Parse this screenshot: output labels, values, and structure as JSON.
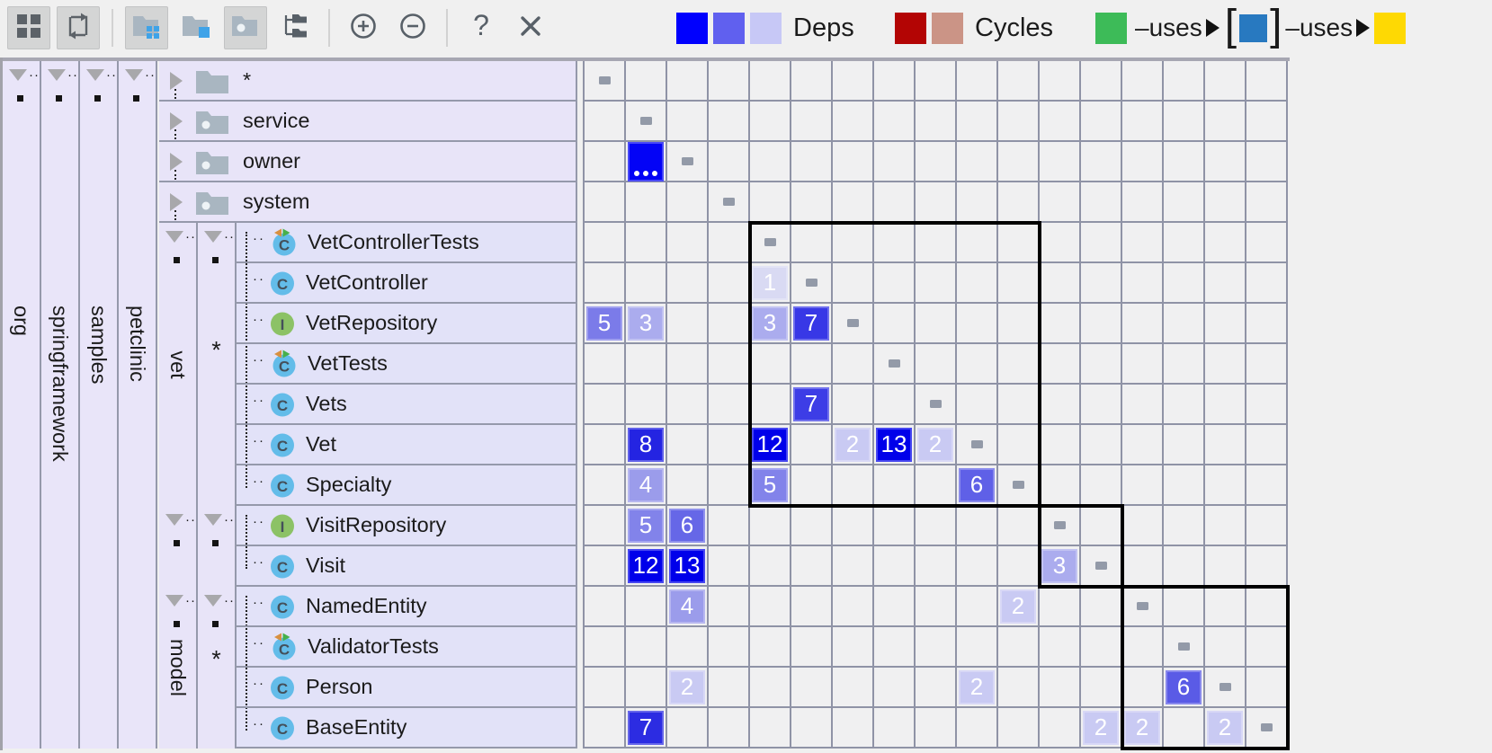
{
  "toolbar": {
    "buttons": [
      {
        "icon": "grid",
        "name": "matrix-view-button",
        "pressed": true
      },
      {
        "icon": "cycle",
        "name": "cycles-mode-button",
        "pressed": true
      },
      {
        "sep": true
      },
      {
        "icon": "folder-grid",
        "name": "group-by-packages-button",
        "pressed": true
      },
      {
        "icon": "folder-square",
        "name": "flatten-packages-button",
        "pressed": false
      },
      {
        "icon": "folder-dot",
        "name": "show-packages-button",
        "pressed": true
      },
      {
        "icon": "tree",
        "name": "tree-structure-button",
        "pressed": false
      },
      {
        "sep": true
      },
      {
        "icon": "zoom-in",
        "name": "zoom-in-button",
        "pressed": false
      },
      {
        "icon": "zoom-out",
        "name": "zoom-out-button",
        "pressed": false
      },
      {
        "sep": true
      },
      {
        "icon": "help",
        "name": "help-button",
        "pressed": false
      },
      {
        "icon": "close",
        "name": "close-button",
        "pressed": false
      }
    ]
  },
  "legend": {
    "deps": {
      "label": "Deps",
      "colors": [
        "#0000fe",
        "#6060ef",
        "#c7c8f6"
      ]
    },
    "cycles": {
      "label": "Cycles",
      "colors": [
        "#b30504",
        "#cb9486"
      ]
    },
    "uses": {
      "from_color": "#3dbb58",
      "label1": "–uses",
      "bracket_open": "[",
      "mid_color": "#2879c0",
      "bracket_close": "]",
      "label2": "–uses",
      "to_color": "#fed903"
    }
  },
  "packages": {
    "items": [
      "org",
      "springframework",
      "samples",
      "petclinic"
    ]
  },
  "tree": {
    "top_rows": [
      {
        "label": "*",
        "icon": "folder-plain"
      },
      {
        "label": "service",
        "icon": "package"
      },
      {
        "label": "owner",
        "icon": "package"
      },
      {
        "label": "system",
        "icon": "package"
      }
    ],
    "groups": [
      {
        "label": "vet",
        "sub": "*",
        "rows": [
          {
            "label": "VetControllerTests",
            "icon": "test-class"
          },
          {
            "label": "VetController",
            "icon": "class"
          },
          {
            "label": "VetRepository",
            "icon": "interface"
          },
          {
            "label": "VetTests",
            "icon": "test-class"
          },
          {
            "label": "Vets",
            "icon": "class"
          },
          {
            "label": "Vet",
            "icon": "class"
          },
          {
            "label": "Specialty",
            "icon": "class"
          }
        ]
      },
      {
        "label": "",
        "sub": "",
        "rows": [
          {
            "label": "VisitRepository",
            "icon": "interface"
          },
          {
            "label": "Visit",
            "icon": "class"
          }
        ]
      },
      {
        "label": "model",
        "sub": "*",
        "rows": [
          {
            "label": "NamedEntity",
            "icon": "class"
          },
          {
            "label": "ValidatorTests",
            "icon": "test-class"
          },
          {
            "label": "Person",
            "icon": "class"
          },
          {
            "label": "BaseEntity",
            "icon": "class"
          }
        ]
      }
    ]
  },
  "matrix": {
    "rows": 17,
    "cols": 17,
    "entities": [
      "*",
      "service",
      "owner",
      "system",
      "VetControllerTests",
      "VetController",
      "VetRepository",
      "VetTests",
      "Vets",
      "Vet",
      "Specialty",
      "VisitRepository",
      "Visit",
      "NamedEntity",
      "ValidatorTests",
      "Person",
      "BaseEntity"
    ],
    "cells": [
      {
        "r": 3,
        "c": 2,
        "v": "...",
        "bg": "#0303f6",
        "ellipsis": true
      },
      {
        "r": 6,
        "c": 5,
        "v": "1",
        "bg": "#d9daf3",
        "sp": true
      },
      {
        "r": 7,
        "c": 1,
        "v": "5",
        "bg": "#7b7be9"
      },
      {
        "r": 7,
        "c": 2,
        "v": "3",
        "bg": "#abacee"
      },
      {
        "r": 7,
        "c": 5,
        "v": "3",
        "bg": "#abacee"
      },
      {
        "r": 7,
        "c": 6,
        "v": "7",
        "bg": "#3838e6",
        "sp": true
      },
      {
        "r": 9,
        "c": 6,
        "v": "7",
        "bg": "#3d3de6",
        "sp": true
      },
      {
        "r": 10,
        "c": 2,
        "v": "8",
        "bg": "#2424e2",
        "sp": true
      },
      {
        "r": 10,
        "c": 5,
        "v": "12",
        "bg": "#0000ea"
      },
      {
        "r": 10,
        "c": 7,
        "v": "2",
        "bg": "#c9caf3"
      },
      {
        "r": 10,
        "c": 8,
        "v": "13",
        "bg": "#0000ea"
      },
      {
        "r": 10,
        "c": 9,
        "v": "2",
        "bg": "#c9caf3"
      },
      {
        "r": 11,
        "c": 2,
        "v": "4",
        "bg": "#9b9ceb"
      },
      {
        "r": 11,
        "c": 5,
        "v": "5",
        "bg": "#8283ea"
      },
      {
        "r": 11,
        "c": 10,
        "v": "6",
        "bg": "#5f60e7"
      },
      {
        "r": 12,
        "c": 2,
        "v": "5",
        "bg": "#8283ea"
      },
      {
        "r": 12,
        "c": 3,
        "v": "6",
        "bg": "#6667e7"
      },
      {
        "r": 13,
        "c": 2,
        "v": "12",
        "bg": "#0000ea"
      },
      {
        "r": 13,
        "c": 3,
        "v": "13",
        "bg": "#0000ea"
      },
      {
        "r": 13,
        "c": 12,
        "v": "3",
        "bg": "#abacee"
      },
      {
        "r": 14,
        "c": 3,
        "v": "4",
        "bg": "#9b9ceb"
      },
      {
        "r": 14,
        "c": 11,
        "v": "2",
        "bg": "#c9caf3"
      },
      {
        "r": 16,
        "c": 3,
        "v": "2",
        "bg": "#c9caf3"
      },
      {
        "r": 16,
        "c": 10,
        "v": "2",
        "bg": "#c9caf3"
      },
      {
        "r": 16,
        "c": 15,
        "v": "6",
        "bg": "#5a5be6"
      },
      {
        "r": 17,
        "c": 2,
        "v": "7",
        "bg": "#2c2ce2",
        "sp": true
      },
      {
        "r": 17,
        "c": 13,
        "v": "2",
        "bg": "#c9caf3"
      },
      {
        "r": 17,
        "c": 14,
        "v": "2",
        "bg": "#c9caf3"
      },
      {
        "r": 17,
        "c": 16,
        "v": "2",
        "bg": "#c9caf3"
      }
    ],
    "boxes": [
      {
        "r1": 5,
        "c1": 5,
        "r2": 11,
        "c2": 11
      },
      {
        "r1": 12,
        "c1": 12,
        "r2": 13,
        "c2": 13
      },
      {
        "r1": 14,
        "c1": 14,
        "r2": 17,
        "c2": 17
      }
    ]
  },
  "colors": {
    "grid_line": "#8f93a6",
    "tree_bg": "#e8e4f8",
    "diag_marker": "#939aa8",
    "box_border": "#000000",
    "toolbar_pressed": "#d4d5d5"
  }
}
